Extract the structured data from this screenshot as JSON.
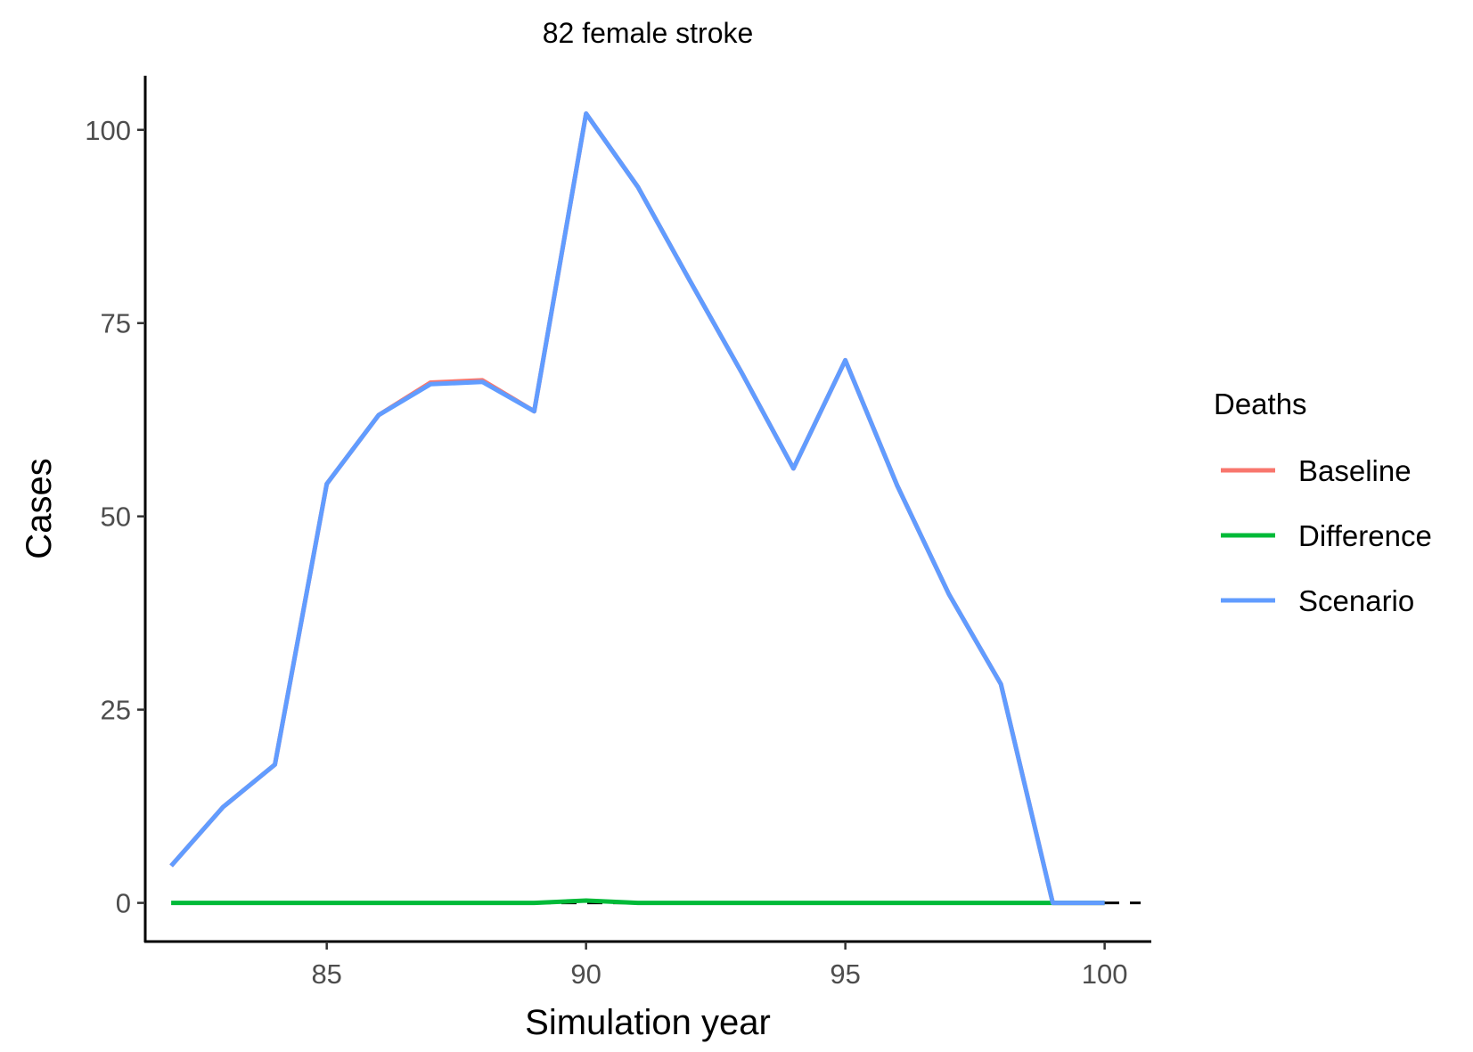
{
  "chart_data": {
    "type": "line",
    "title": "82 female stroke",
    "xlabel": "Simulation year",
    "ylabel": "Cases",
    "xlim": [
      81.5,
      100.9
    ],
    "ylim": [
      -5,
      107
    ],
    "xticks": [
      85,
      90,
      95,
      100
    ],
    "yticks": [
      0,
      25,
      50,
      75,
      100
    ],
    "grid": false,
    "reference_line": {
      "y": 0,
      "style": "dashed",
      "color": "#000000"
    },
    "legend": {
      "title": "Deaths",
      "position": "right",
      "entries": [
        "Baseline",
        "Difference",
        "Scenario"
      ]
    },
    "x": [
      82,
      83,
      84,
      85,
      86,
      87,
      88,
      89,
      90,
      91,
      92,
      93,
      94,
      95,
      96,
      97,
      98,
      99,
      100
    ],
    "series": [
      {
        "name": "Baseline",
        "color": "#F8766D",
        "values": [
          4.8,
          12.4,
          17.9,
          54.2,
          63.1,
          67.3,
          67.6,
          63.6,
          102.1,
          92.6,
          80.5,
          68.6,
          56.2,
          70.2,
          54.0,
          39.9,
          28.3,
          0,
          0
        ]
      },
      {
        "name": "Difference",
        "color": "#00BA38",
        "values": [
          0,
          0,
          0,
          0,
          0,
          0,
          0,
          0,
          0.3,
          0,
          0,
          0,
          0,
          0,
          0,
          0,
          0,
          0,
          0
        ]
      },
      {
        "name": "Scenario",
        "color": "#619CFF",
        "values": [
          4.8,
          12.4,
          17.9,
          54.2,
          63.1,
          67.1,
          67.4,
          63.6,
          102.1,
          92.6,
          80.5,
          68.6,
          56.2,
          70.2,
          54.0,
          39.9,
          28.3,
          0,
          0
        ]
      }
    ]
  }
}
